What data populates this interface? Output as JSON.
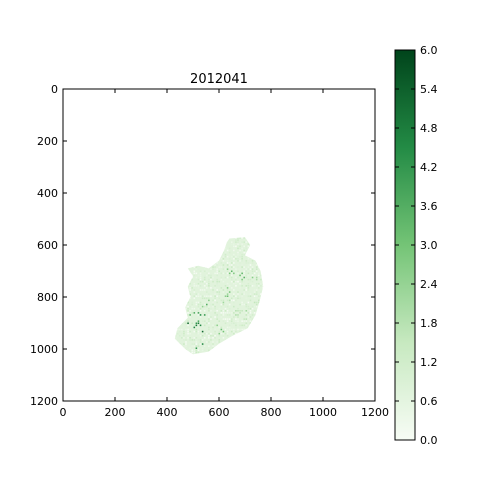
{
  "chart_data": {
    "type": "heatmap",
    "title": "2012041",
    "xlabel": "",
    "ylabel": "",
    "xlim": [
      0,
      1200
    ],
    "ylim": [
      1200,
      0
    ],
    "xticks": [
      0,
      200,
      400,
      600,
      800,
      1000,
      1200
    ],
    "yticks": [
      0,
      200,
      400,
      600,
      800,
      1000,
      1200
    ],
    "xtick_labels": [
      "0",
      "200",
      "400",
      "600",
      "800",
      "1000",
      "1200"
    ],
    "ytick_labels": [
      "0",
      "200",
      "400",
      "600",
      "800",
      "1000",
      "1200"
    ],
    "colormap": "Greens",
    "colorbar": {
      "min": 0.0,
      "max": 6.0,
      "ticks": [
        0.0,
        0.6,
        1.2,
        1.8,
        2.4,
        3.0,
        3.6,
        4.2,
        4.8,
        5.4,
        6.0
      ],
      "tick_labels": [
        "0.0",
        "0.6",
        "1.2",
        "1.8",
        "2.4",
        "3.0",
        "3.6",
        "4.2",
        "4.8",
        "5.4",
        "6.0"
      ],
      "colors": [
        "#f7fcf5",
        "#c7e9c0",
        "#74c476",
        "#238b45",
        "#00441b"
      ]
    },
    "region_outline": [
      [
        640,
        575
      ],
      [
        700,
        570
      ],
      [
        720,
        600
      ],
      [
        700,
        640
      ],
      [
        740,
        660
      ],
      [
        760,
        700
      ],
      [
        770,
        760
      ],
      [
        755,
        820
      ],
      [
        740,
        870
      ],
      [
        710,
        920
      ],
      [
        650,
        950
      ],
      [
        600,
        980
      ],
      [
        560,
        1010
      ],
      [
        500,
        1020
      ],
      [
        470,
        1000
      ],
      [
        430,
        960
      ],
      [
        440,
        920
      ],
      [
        480,
        880
      ],
      [
        470,
        840
      ],
      [
        490,
        800
      ],
      [
        480,
        760
      ],
      [
        500,
        720
      ],
      [
        480,
        690
      ],
      [
        520,
        680
      ],
      [
        560,
        690
      ],
      [
        600,
        660
      ],
      [
        620,
        620
      ],
      [
        630,
        590
      ]
    ],
    "hotspots": [
      {
        "x": 515,
        "y": 900,
        "r": 45,
        "level": 5.0
      },
      {
        "x": 530,
        "y": 990,
        "r": 25,
        "level": 5.2
      },
      {
        "x": 560,
        "y": 830,
        "r": 28,
        "level": 3.8
      },
      {
        "x": 620,
        "y": 790,
        "r": 30,
        "level": 3.0
      },
      {
        "x": 640,
        "y": 700,
        "r": 22,
        "level": 3.4
      },
      {
        "x": 690,
        "y": 715,
        "r": 25,
        "level": 3.6
      },
      {
        "x": 740,
        "y": 720,
        "r": 20,
        "level": 2.6
      },
      {
        "x": 680,
        "y": 860,
        "r": 35,
        "level": 2.0
      },
      {
        "x": 600,
        "y": 920,
        "r": 30,
        "level": 3.2
      },
      {
        "x": 730,
        "y": 810,
        "r": 22,
        "level": 2.2
      }
    ]
  }
}
